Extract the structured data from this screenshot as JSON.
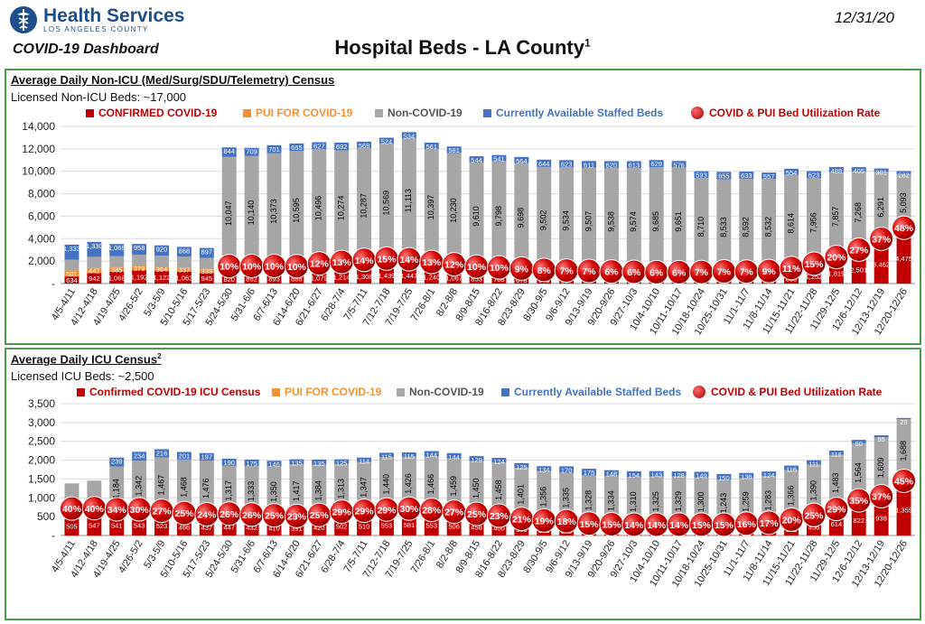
{
  "header": {
    "org_title": "Health Services",
    "org_subtitle": "LOS ANGELES COUNTY",
    "dashboard_label": "COVID-19 Dashboard",
    "main_title": "Hospital Beds - LA County",
    "main_title_note": "1",
    "date": "12/31/20"
  },
  "colors": {
    "confirmed": "#c00000",
    "pui": "#f4912e",
    "non_covid": "#a6a6a6",
    "available": "#4472c4",
    "utilization": "#c00000",
    "panel_border": "#4a9e4a",
    "brand": "#1f4e8c"
  },
  "chart_data": [
    {
      "type": "bar",
      "stacked": true,
      "title": "Average Daily Non-ICU (Med/Surg/SDU/Telemetry) Census",
      "subtitle": "Licensed Non-ICU Beds: ~17,000",
      "ylim": [
        0,
        14000
      ],
      "ytick_step": 2000,
      "ytick_labels": [
        "-",
        "2,000",
        "4,000",
        "6,000",
        "8,000",
        "10,000",
        "12,000",
        "14,000"
      ],
      "grid": true,
      "legend": "top",
      "categories": [
        "4/5-4/11",
        "4/12-4/18",
        "4/19-4/25",
        "4/26-5/2",
        "5/3-5/9",
        "5/10-5/16",
        "5/17-5/23",
        "5/24-5/30",
        "5/31-6/6",
        "6/7-6/13",
        "6/14-6/20",
        "6/21-6/27",
        "6/28-7/4",
        "7/5-7/11",
        "7/12-7/18",
        "7/19-7/25",
        "7/26-8/1",
        "8/2-8/8",
        "8/9-8/15",
        "8/16-8/22",
        "8/23-8/29",
        "8/30-9/5",
        "9/6-9/12",
        "9/13-9/19",
        "9/20-9/26",
        "9/27-10/3",
        "10/4-10/10",
        "10/11-10/17",
        "10/18-10/24",
        "10/25-10/31",
        "11/1-11/7",
        "11/8-11/14",
        "11/15-11/21",
        "11/22-11/28",
        "11/29-12/5",
        "12/6-12/12",
        "12/13-12/19",
        "12/20-12/26"
      ],
      "series": [
        {
          "name": "CONFIRMED COVID-19",
          "values": [
            634,
            942,
            1068,
            1192,
            1122,
            1063,
            945,
            820,
            862,
            893,
            888,
            1079,
            1214,
            1308,
            1439,
            1447,
            1240,
            1067,
            853,
            788,
            678,
            643,
            587,
            557,
            523,
            493,
            470,
            480,
            487,
            543,
            524,
            553,
            863,
            1252,
            1819,
            2501,
            3462,
            4475
          ]
        },
        {
          "name": "PUI FOR COVID-19",
          "values": [
            501,
            442,
            385,
            379,
            364,
            337,
            333,
            419,
            382,
            359,
            337,
            391,
            383,
            480,
            463,
            396,
            360,
            336,
            336,
            325,
            337,
            251,
            252,
            245,
            230,
            228,
            220,
            214,
            218,
            220,
            224,
            243,
            198,
            193,
            219,
            198,
            202,
            173
          ]
        },
        {
          "name": "Non-COVID-19",
          "values": [
            null,
            null,
            null,
            null,
            null,
            null,
            null,
            10047,
            10140,
            10373,
            10595,
            10496,
            10274,
            10287,
            10569,
            11113,
            10397,
            10230,
            9610,
            9798,
            9698,
            9502,
            9534,
            9507,
            9538,
            9574,
            9685,
            9651,
            8710,
            8533,
            8592,
            8532,
            8614,
            7956,
            7857,
            7268,
            6291,
            5093
          ]
        },
        {
          "name": "Currently Available Staffed Beds",
          "values": [
            1333,
            1330,
            1069,
            958,
            920,
            868,
            897,
            844,
            709,
            701,
            665,
            627,
            692,
            568,
            524,
            534,
            561,
            581,
            544,
            541,
            564,
            644,
            623,
            611,
            620,
            613,
            629,
            576,
            593,
            655,
            633,
            557,
            554,
            623,
            488,
            405,
            301,
            282
          ]
        }
      ],
      "non_covid_unlabeled_totals": [
        1000,
        1000,
        1000,
        1000,
        1000,
        1000,
        1000
      ],
      "rate_series": {
        "name": "COVID & PUI Bed Utilization Rate",
        "labels": [
          "",
          "",
          "",
          "",
          "",
          "",
          "",
          "10%",
          "10%",
          "10%",
          "10%",
          "12%",
          "13%",
          "14%",
          "15%",
          "14%",
          "13%",
          "12%",
          "10%",
          "10%",
          "9%",
          "8%",
          "7%",
          "7%",
          "6%",
          "6%",
          "6%",
          "6%",
          "7%",
          "7%",
          "7%",
          "9%",
          "11%",
          "15%",
          "20%",
          "27%",
          "37%",
          "48%"
        ]
      }
    },
    {
      "type": "bar",
      "stacked": true,
      "title": "Average Daily ICU Census",
      "title_note": "2",
      "subtitle": "Licensed ICU Beds: ~2,500",
      "ylim": [
        0,
        3500
      ],
      "ytick_step": 500,
      "ytick_labels": [
        "-",
        "500",
        "1,000",
        "1,500",
        "2,000",
        "2,500",
        "3,000",
        "3,500"
      ],
      "grid": true,
      "legend": "top",
      "categories": [
        "4/5-4/11",
        "4/12-4/18",
        "4/19-4/25",
        "4/26-5/2",
        "5/3-5/9",
        "5/10-5/16",
        "5/17-5/23",
        "5/24-5/30",
        "5/31-6/6",
        "6/7-6/13",
        "6/14-6/20",
        "6/21-6/27",
        "6/28-7/4",
        "7/5-7/11",
        "7/12-7/18",
        "7/19-7/25",
        "7/26-8/1",
        "8/2-8/8",
        "8/9-8/15",
        "8/16-8/22",
        "8/23-8/29",
        "8/30-9/5",
        "9/6-9/12",
        "9/13-9/19",
        "9/20-9/26",
        "9/27-10/3",
        "10/4-10/10",
        "10/11-10/17",
        "10/18-10/24",
        "10/25-10/31",
        "11/1-11/7",
        "11/8-11/14",
        "11/15-11/21",
        "11/22-11/28",
        "11/29-12/5",
        "12/6-12/12",
        "12/13-12/19",
        "12/20-12/26"
      ],
      "series": [
        {
          "name": "Confirmed COVID-19 ICU Census",
          "values": [
            505,
            547,
            541,
            543,
            523,
            466,
            437,
            447,
            432,
            410,
            391,
            420,
            502,
            510,
            553,
            581,
            553,
            506,
            458,
            400,
            333,
            290,
            275,
            217,
            202,
            191,
            191,
            193,
            197,
            197,
            223,
            250,
            331,
            456,
            614,
            822,
            938,
            1355
          ]
        },
        {
          "name": "PUI FOR COVID-19",
          "values": [
            162,
            130,
            106,
            103,
            85,
            82,
            78,
            86,
            77,
            78,
            80,
            78,
            83,
            98,
            88,
            85,
            78,
            78,
            70,
            78,
            61,
            60,
            57,
            52,
            50,
            50,
            50,
            50,
            45,
            43,
            43,
            42,
            43,
            41,
            41,
            62,
            58,
            48
          ]
        },
        {
          "name": "Non-COVID-19",
          "values": [
            716,
            778,
            1184,
            1342,
            1467,
            1468,
            1476,
            1317,
            1333,
            1350,
            1417,
            1384,
            1313,
            1347,
            1440,
            1426,
            1466,
            1459,
            1450,
            1458,
            1401,
            1356,
            1335,
            1328,
            1334,
            1310,
            1325,
            1329,
            1300,
            1243,
            1259,
            1283,
            1366,
            1390,
            1483,
            1564,
            1609,
            1688
          ]
        },
        {
          "name": "Currently Available Staffed Beds",
          "values": [
            null,
            null,
            239,
            234,
            216,
            201,
            197,
            190,
            175,
            146,
            135,
            135,
            125,
            114,
            115,
            115,
            144,
            144,
            129,
            124,
            125,
            134,
            170,
            175,
            148,
            154,
            143,
            128,
            149,
            150,
            136,
            124,
            116,
            111,
            116,
            90,
            55,
            29
          ]
        }
      ],
      "rate_series": {
        "name": "COVID & PUI Bed Utilization Rate",
        "labels": [
          "40%",
          "40%",
          "34%",
          "30%",
          "27%",
          "25%",
          "24%",
          "26%",
          "26%",
          "25%",
          "23%",
          "25%",
          "29%",
          "29%",
          "29%",
          "30%",
          "28%",
          "27%",
          "25%",
          "23%",
          "21%",
          "19%",
          "18%",
          "15%",
          "15%",
          "14%",
          "14%",
          "14%",
          "15%",
          "15%",
          "16%",
          "17%",
          "20%",
          "25%",
          "29%",
          "35%",
          "37%",
          "45%"
        ]
      }
    }
  ],
  "legend_labels": {
    "p1": [
      "CONFIRMED COVID-19",
      "PUI FOR COVID-19",
      "Non-COVID-19",
      "Currently Available Staffed Beds",
      "COVID & PUI Bed Utilization Rate"
    ],
    "p2": [
      "Confirmed COVID-19 ICU Census",
      "PUI FOR COVID-19",
      "Non-COVID-19",
      "Currently Available Staffed Beds",
      "COVID & PUI Bed Utilization Rate"
    ]
  }
}
